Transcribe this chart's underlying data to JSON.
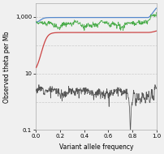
{
  "title": "",
  "xlabel": "Variant allele frequency",
  "ylabel": "Observed theta per Mb",
  "xlim": [
    0.0,
    1.0
  ],
  "ylim_log": [
    0.1,
    3000
  ],
  "xticks": [
    0.0,
    0.2,
    0.4,
    0.6,
    0.8,
    1.0
  ],
  "blue_color": "#5588CC",
  "red_color": "#CC4444",
  "green_color": "#44AA44",
  "dark_color": "#555555",
  "bg_color": "#F0F0F0",
  "grid_color": "#CCCCCC"
}
